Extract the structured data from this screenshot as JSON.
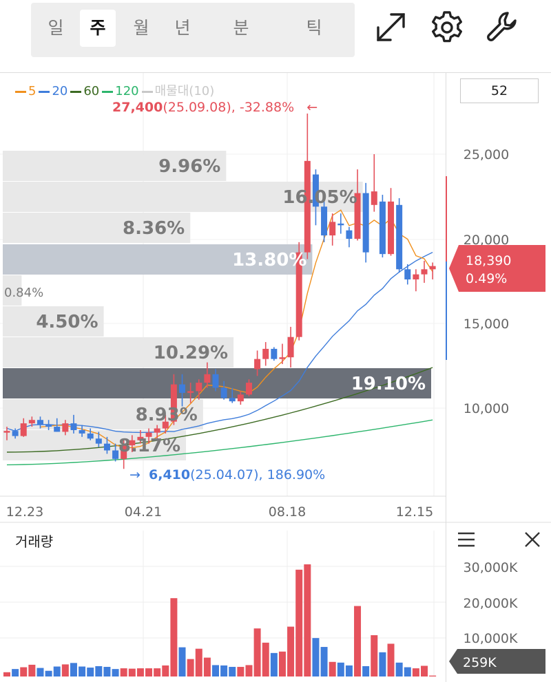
{
  "periods": [
    {
      "label": "일",
      "active": false
    },
    {
      "label": "주",
      "active": true
    },
    {
      "label": "월",
      "active": false
    },
    {
      "label": "년",
      "active": false
    },
    {
      "label": "분",
      "active": false
    },
    {
      "label": "틱",
      "active": false
    }
  ],
  "toolbar": {
    "icons": [
      "expand-icon",
      "gear-icon",
      "wrench-icon"
    ]
  },
  "legend": [
    {
      "label": "5",
      "color": "#f0901e"
    },
    {
      "label": "20",
      "color": "#3f7ddb"
    },
    {
      "label": "60",
      "color": "#3d6b23"
    },
    {
      "label": "120",
      "color": "#2cb56c"
    },
    {
      "label": "매물대(10)",
      "color": "#c8c8c8"
    }
  ],
  "period_count": "52",
  "high_annotation": {
    "price": "27,400",
    "date": "(25.09.08),",
    "change": "-32.88%",
    "arrow": "←"
  },
  "low_annotation": {
    "arrow": "→",
    "price": "6,410",
    "date": "(25.04.07),",
    "change": "186.90%"
  },
  "current_price": {
    "price": "18,390",
    "change": "0.49%",
    "color": "#e5525c"
  },
  "volume": {
    "title": "거래량",
    "current": "259K",
    "menu_icon": "menu-icon",
    "close_icon": "close-icon"
  },
  "chart_data": {
    "type": "candlestick",
    "x_ticks": [
      "12.23",
      "04.21",
      "08.18",
      "12.15"
    ],
    "y_ticks": [
      "25,000",
      "20,000",
      "15,000",
      "10,000"
    ],
    "volume_y_ticks": [
      "30,000K",
      "20,000K",
      "10,000K"
    ],
    "volume_profile": [
      "9.96%",
      "16.05%",
      "8.36%",
      "13.80%",
      "0.84%",
      "4.50%",
      "10.29%",
      "19.10%",
      "8.93%",
      "8.17%"
    ],
    "candles": [
      {
        "o": 8550,
        "h": 8900,
        "l": 8100,
        "c": 8650
      },
      {
        "o": 8650,
        "h": 8800,
        "l": 8200,
        "c": 8350
      },
      {
        "o": 8350,
        "h": 9400,
        "l": 8300,
        "c": 9100
      },
      {
        "o": 9100,
        "h": 9500,
        "l": 8900,
        "c": 9300
      },
      {
        "o": 9300,
        "h": 9500,
        "l": 8800,
        "c": 9000
      },
      {
        "o": 9000,
        "h": 9300,
        "l": 8700,
        "c": 8900
      },
      {
        "o": 8900,
        "h": 9400,
        "l": 8600,
        "c": 8600
      },
      {
        "o": 8600,
        "h": 9300,
        "l": 8400,
        "c": 9100
      },
      {
        "o": 9100,
        "h": 9600,
        "l": 8500,
        "c": 8700
      },
      {
        "o": 8700,
        "h": 9000,
        "l": 8300,
        "c": 8500
      },
      {
        "o": 8500,
        "h": 8800,
        "l": 8100,
        "c": 8200
      },
      {
        "o": 8200,
        "h": 8600,
        "l": 7700,
        "c": 7900
      },
      {
        "o": 7900,
        "h": 8300,
        "l": 7300,
        "c": 7500
      },
      {
        "o": 7500,
        "h": 7900,
        "l": 6850,
        "c": 7000
      },
      {
        "o": 7000,
        "h": 8100,
        "l": 6410,
        "c": 7800
      },
      {
        "o": 7800,
        "h": 8400,
        "l": 7400,
        "c": 8100
      },
      {
        "o": 8100,
        "h": 8700,
        "l": 7900,
        "c": 8300
      },
      {
        "o": 8300,
        "h": 8800,
        "l": 7900,
        "c": 8550
      },
      {
        "o": 8550,
        "h": 9000,
        "l": 8200,
        "c": 8800
      },
      {
        "o": 8800,
        "h": 9600,
        "l": 8500,
        "c": 9200
      },
      {
        "o": 9200,
        "h": 12000,
        "l": 9000,
        "c": 11400
      },
      {
        "o": 11400,
        "h": 12000,
        "l": 10100,
        "c": 10900
      },
      {
        "o": 10900,
        "h": 11500,
        "l": 10300,
        "c": 11000
      },
      {
        "o": 11000,
        "h": 11700,
        "l": 10500,
        "c": 11500
      },
      {
        "o": 11500,
        "h": 12700,
        "l": 11200,
        "c": 12000
      },
      {
        "o": 12000,
        "h": 12300,
        "l": 11000,
        "c": 11200
      },
      {
        "o": 11200,
        "h": 11600,
        "l": 10500,
        "c": 10600
      },
      {
        "o": 10600,
        "h": 11200,
        "l": 10300,
        "c": 10400
      },
      {
        "o": 10400,
        "h": 11000,
        "l": 10200,
        "c": 10800
      },
      {
        "o": 10800,
        "h": 11700,
        "l": 10700,
        "c": 11500
      },
      {
        "o": 12300,
        "h": 13400,
        "l": 11900,
        "c": 12900
      },
      {
        "o": 12900,
        "h": 13900,
        "l": 12500,
        "c": 13500
      },
      {
        "o": 13500,
        "h": 13600,
        "l": 12800,
        "c": 12900
      },
      {
        "o": 12900,
        "h": 13800,
        "l": 12600,
        "c": 13000
      },
      {
        "o": 13000,
        "h": 14800,
        "l": 12400,
        "c": 14200
      },
      {
        "o": 14200,
        "h": 19800,
        "l": 14000,
        "c": 19200
      },
      {
        "o": 19200,
        "h": 27400,
        "l": 18800,
        "c": 24600
      },
      {
        "o": 23800,
        "h": 24100,
        "l": 20800,
        "c": 21900
      },
      {
        "o": 21900,
        "h": 22800,
        "l": 19800,
        "c": 20200
      },
      {
        "o": 20200,
        "h": 21500,
        "l": 19600,
        "c": 21000
      },
      {
        "o": 20900,
        "h": 21500,
        "l": 20300,
        "c": 20800
      },
      {
        "o": 20500,
        "h": 20700,
        "l": 19500,
        "c": 20000
      },
      {
        "o": 20000,
        "h": 24100,
        "l": 19900,
        "c": 22700
      },
      {
        "o": 22700,
        "h": 23300,
        "l": 18600,
        "c": 19200
      },
      {
        "o": 22000,
        "h": 25000,
        "l": 21600,
        "c": 22800
      },
      {
        "o": 22200,
        "h": 22600,
        "l": 18900,
        "c": 19100
      },
      {
        "o": 19100,
        "h": 23000,
        "l": 19000,
        "c": 22200
      },
      {
        "o": 22000,
        "h": 22400,
        "l": 18000,
        "c": 18200
      },
      {
        "o": 18200,
        "h": 18500,
        "l": 17300,
        "c": 17600
      },
      {
        "o": 17600,
        "h": 18200,
        "l": 16900,
        "c": 17900
      },
      {
        "o": 17900,
        "h": 18700,
        "l": 17400,
        "c": 18200
      },
      {
        "o": 18200,
        "h": 18600,
        "l": 17600,
        "c": 18390
      }
    ]
  }
}
